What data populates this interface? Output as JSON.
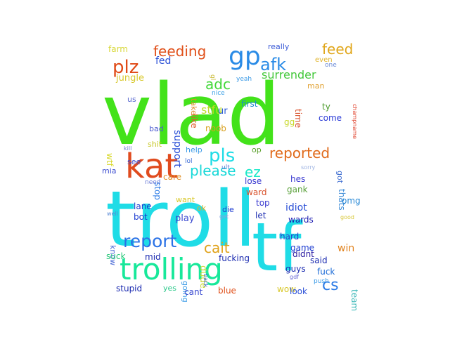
{
  "words": [
    {
      "text": "vlad",
      "color": "#43e21a"
    },
    {
      "text": "troll",
      "color": "#1fdce6"
    },
    {
      "text": "tf",
      "color": "#1fdce6"
    },
    {
      "text": "trolling",
      "color": "#17e89a"
    },
    {
      "text": "kat",
      "color": "#e04b1e"
    },
    {
      "text": "gp",
      "color": "#2a8be6"
    },
    {
      "text": "feeding",
      "color": "#e0501a"
    },
    {
      "text": "plz",
      "color": "#e04a16"
    },
    {
      "text": "afk",
      "color": "#2a8be6"
    },
    {
      "text": "feed",
      "color": "#e0a61a"
    },
    {
      "text": "pls",
      "color": "#1fdce6"
    },
    {
      "text": "reported",
      "color": "#e06a1a"
    },
    {
      "text": "report",
      "color": "#2a72e6"
    },
    {
      "text": "cait",
      "color": "#e0a21a"
    },
    {
      "text": "please",
      "color": "#17d8d8"
    },
    {
      "text": "ez",
      "color": "#17e8c8"
    },
    {
      "text": "adc",
      "color": "#43d83a"
    },
    {
      "text": "surrender",
      "color": "#43c83a"
    },
    {
      "text": "stfu",
      "color": "#bedc2a"
    },
    {
      "text": "support",
      "color": "#2a4fd6"
    },
    {
      "text": "cs",
      "color": "#2a7ae6"
    },
    {
      "text": "jungle",
      "color": "#d8c82a"
    },
    {
      "text": "fed",
      "color": "#2a4fd6"
    },
    {
      "text": "farm",
      "color": "#d8d83a"
    },
    {
      "text": "really",
      "color": "#3a5ad6"
    },
    {
      "text": "even",
      "color": "#e0b42a"
    },
    {
      "text": "one",
      "color": "#6a8ad6"
    },
    {
      "text": "gl",
      "color": "#c8b830"
    },
    {
      "text": "man",
      "color": "#e0a030"
    },
    {
      "text": "time",
      "color": "#d8502a"
    },
    {
      "text": "champname",
      "color": "#e0402a"
    },
    {
      "text": "yeah",
      "color": "#3a9ae6"
    },
    {
      "text": "take",
      "color": "#e08a2a"
    },
    {
      "text": "like",
      "color": "#e05a2a"
    },
    {
      "text": "nice",
      "color": "#3aa0e6"
    },
    {
      "text": "ur",
      "color": "#2a5ad6"
    },
    {
      "text": "first",
      "color": "#1a8ad0"
    },
    {
      "text": "ty",
      "color": "#4a9a2a"
    },
    {
      "text": "come",
      "color": "#2a3ad6"
    },
    {
      "text": "gg",
      "color": "#c8d82a"
    },
    {
      "text": "us",
      "color": "#5a6ad0"
    },
    {
      "text": "bad",
      "color": "#4a5ad0"
    },
    {
      "text": "noob",
      "color": "#d8a020"
    },
    {
      "text": "shit",
      "color": "#c8c82a"
    },
    {
      "text": "wtf",
      "color": "#d8d82a"
    },
    {
      "text": "kill",
      "color": "#6a7ad6"
    },
    {
      "text": "help",
      "color": "#3a9ae6"
    },
    {
      "text": "op",
      "color": "#5aa02a"
    },
    {
      "text": "see",
      "color": "#3a4ad0"
    },
    {
      "text": "mia",
      "color": "#3a4ad0"
    },
    {
      "text": "care",
      "color": "#e0902a"
    },
    {
      "text": "lol",
      "color": "#3a6ad6"
    },
    {
      "text": "ult",
      "color": "#5a7ad6"
    },
    {
      "text": "sorry",
      "color": "#9ab0e0"
    },
    {
      "text": "got",
      "color": "#3a6ad0"
    },
    {
      "text": "need",
      "color": "#6a7ad6"
    },
    {
      "text": "stop",
      "color": "#2a7ae6"
    },
    {
      "text": "lose",
      "color": "#3a3ad0"
    },
    {
      "text": "thats",
      "color": "#3a8ad6"
    },
    {
      "text": "hes",
      "color": "#3a3ad0"
    },
    {
      "text": "gank",
      "color": "#5aa03a"
    },
    {
      "text": "ward",
      "color": "#d8502a"
    },
    {
      "text": "want",
      "color": "#d8c82a"
    },
    {
      "text": "lane",
      "color": "#1a3ad0"
    },
    {
      "text": "bot",
      "color": "#1a3ad0"
    },
    {
      "text": "ok",
      "color": "#e0b42a"
    },
    {
      "text": "die",
      "color": "#1a3ad0"
    },
    {
      "text": "top",
      "color": "#3a3ad0"
    },
    {
      "text": "idiot",
      "color": "#2a4fd6"
    },
    {
      "text": "omg",
      "color": "#2a8ad6"
    },
    {
      "text": "let",
      "color": "#1a2ab0"
    },
    {
      "text": "wards",
      "color": "#1a1ab0"
    },
    {
      "text": "well",
      "color": "#5a8ad6"
    },
    {
      "text": "get",
      "color": "#8aa0e0"
    },
    {
      "text": "good",
      "color": "#d8c83a"
    },
    {
      "text": "know",
      "color": "#4a6ad6"
    },
    {
      "text": "play",
      "color": "#3a4ad0"
    },
    {
      "text": "dude",
      "color": "#c8d83a"
    },
    {
      "text": "hard",
      "color": "#2a3ad0"
    },
    {
      "text": "game",
      "color": "#1a3ad0"
    },
    {
      "text": "didnt",
      "color": "#2a1aa0"
    },
    {
      "text": "suck",
      "color": "#2ac87a"
    },
    {
      "text": "mid",
      "color": "#1a2ab0"
    },
    {
      "text": "going",
      "color": "#3a9ae6"
    },
    {
      "text": "fucking",
      "color": "#1a2ab0"
    },
    {
      "text": "said",
      "color": "#1a2ab0"
    },
    {
      "text": "win",
      "color": "#e0801a"
    },
    {
      "text": "guys",
      "color": "#1a2ab0"
    },
    {
      "text": "fuck",
      "color": "#1a6ad6"
    },
    {
      "text": "back",
      "color": "#3a6ad6"
    },
    {
      "text": "gdf",
      "color": "#6a6ad6"
    },
    {
      "text": "push",
      "color": "#3a9ae6"
    },
    {
      "text": "team",
      "color": "#3ab8b8"
    },
    {
      "text": "stupid",
      "color": "#1a2ab0"
    },
    {
      "text": "yes",
      "color": "#2ac88a"
    },
    {
      "text": "cant",
      "color": "#3a4ad0"
    },
    {
      "text": "blue",
      "color": "#e0501a"
    },
    {
      "text": "wow",
      "color": "#d8c82a"
    },
    {
      "text": "look",
      "color": "#2a4fd6"
    }
  ]
}
